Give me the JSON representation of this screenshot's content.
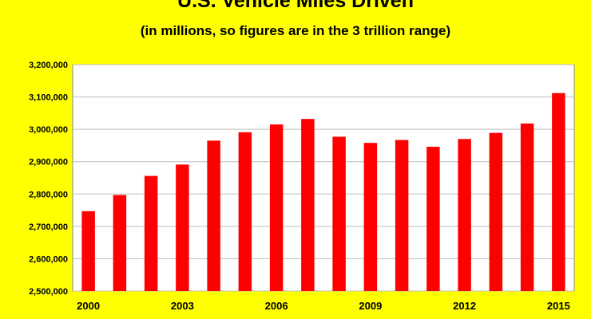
{
  "chart_data": {
    "type": "bar",
    "title": "U.S. Vehicle Miles Driven",
    "subtitle": "(in millions, so figures are in the 3 trillion range)",
    "xlabel": "",
    "ylabel": "",
    "categories": [
      "2000",
      "2001",
      "2002",
      "2003",
      "2004",
      "2005",
      "2006",
      "2007",
      "2008",
      "2009",
      "2010",
      "2011",
      "2012",
      "2013",
      "2014",
      "2015"
    ],
    "series": [
      {
        "values": [
          2747000,
          2797000,
          2856000,
          2891000,
          2965000,
          2991000,
          3015000,
          3032000,
          2977000,
          2958000,
          2967000,
          2946000,
          2970000,
          2989000,
          3018000,
          3112000
        ]
      }
    ],
    "ylim": [
      2500000,
      3200000
    ],
    "y_ticks": [
      2500000,
      2600000,
      2700000,
      2800000,
      2900000,
      3000000,
      3100000,
      3200000
    ],
    "y_tick_labels": [
      "2,500,000",
      "2,600,000",
      "2,700,000",
      "2,800,000",
      "2,900,000",
      "3,000,000",
      "3,100,000",
      "3,200,000"
    ],
    "x_tick_labels": [
      "2000",
      "2003",
      "2006",
      "2009",
      "2012",
      "2015"
    ],
    "grid": true,
    "bar_color": "#FF0000",
    "plot_background": "#FFFFFF",
    "page_background": "#FFFF00"
  }
}
